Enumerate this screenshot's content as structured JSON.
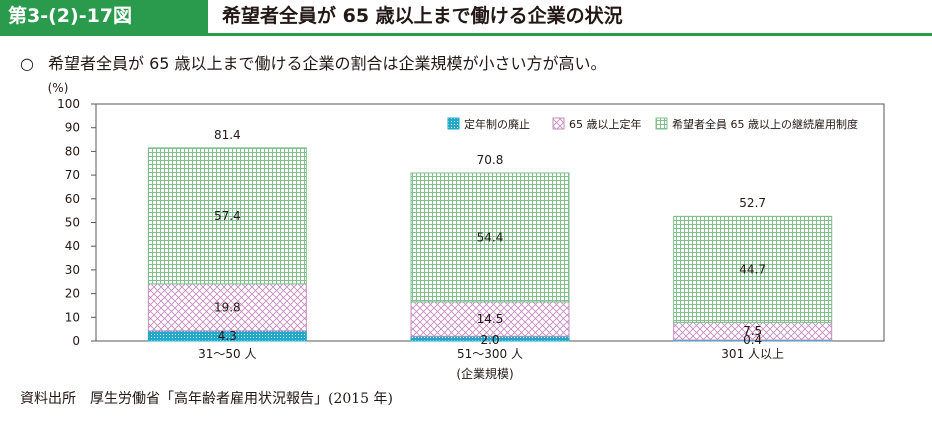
{
  "header": {
    "figure_number": "第3-(2)-17図",
    "title": "希望者全員が 65 歳以上まで働ける企業の状況"
  },
  "summary": {
    "bullet": "○",
    "text": "希望者全員が 65 歳以上まで働ける企業の割合は企業規模が小さい方が高い。"
  },
  "source": "資料出所　厚生労働省「高年齢者雇用状況報告」(2015 年)",
  "colors": {
    "accent": "#2a9a4c",
    "series_teal": "#21a9c9",
    "series_pink": "#c68cbf",
    "series_green": "#7fc08c",
    "axis": "#595757"
  },
  "chart_data": {
    "type": "bar",
    "stacked": true,
    "y_unit": "(%)",
    "xlabel": "(企業規模)",
    "categories": [
      "31～50 人",
      "51～300 人",
      "301 人以上"
    ],
    "ylim": [
      0,
      100
    ],
    "yticks": [
      0,
      10,
      20,
      30,
      40,
      50,
      60,
      70,
      80,
      90,
      100
    ],
    "series": [
      {
        "name": "定年制の廃止",
        "values": [
          4.3,
          2.0,
          0.4
        ]
      },
      {
        "name": "65 歳以上定年",
        "values": [
          19.8,
          14.5,
          7.5
        ]
      },
      {
        "name": "希望者全員 65 歳以上の継続雇用制度",
        "values": [
          57.4,
          54.4,
          44.7
        ]
      }
    ],
    "totals": [
      81.4,
      70.8,
      52.7
    ],
    "legend_position": "top-right"
  }
}
